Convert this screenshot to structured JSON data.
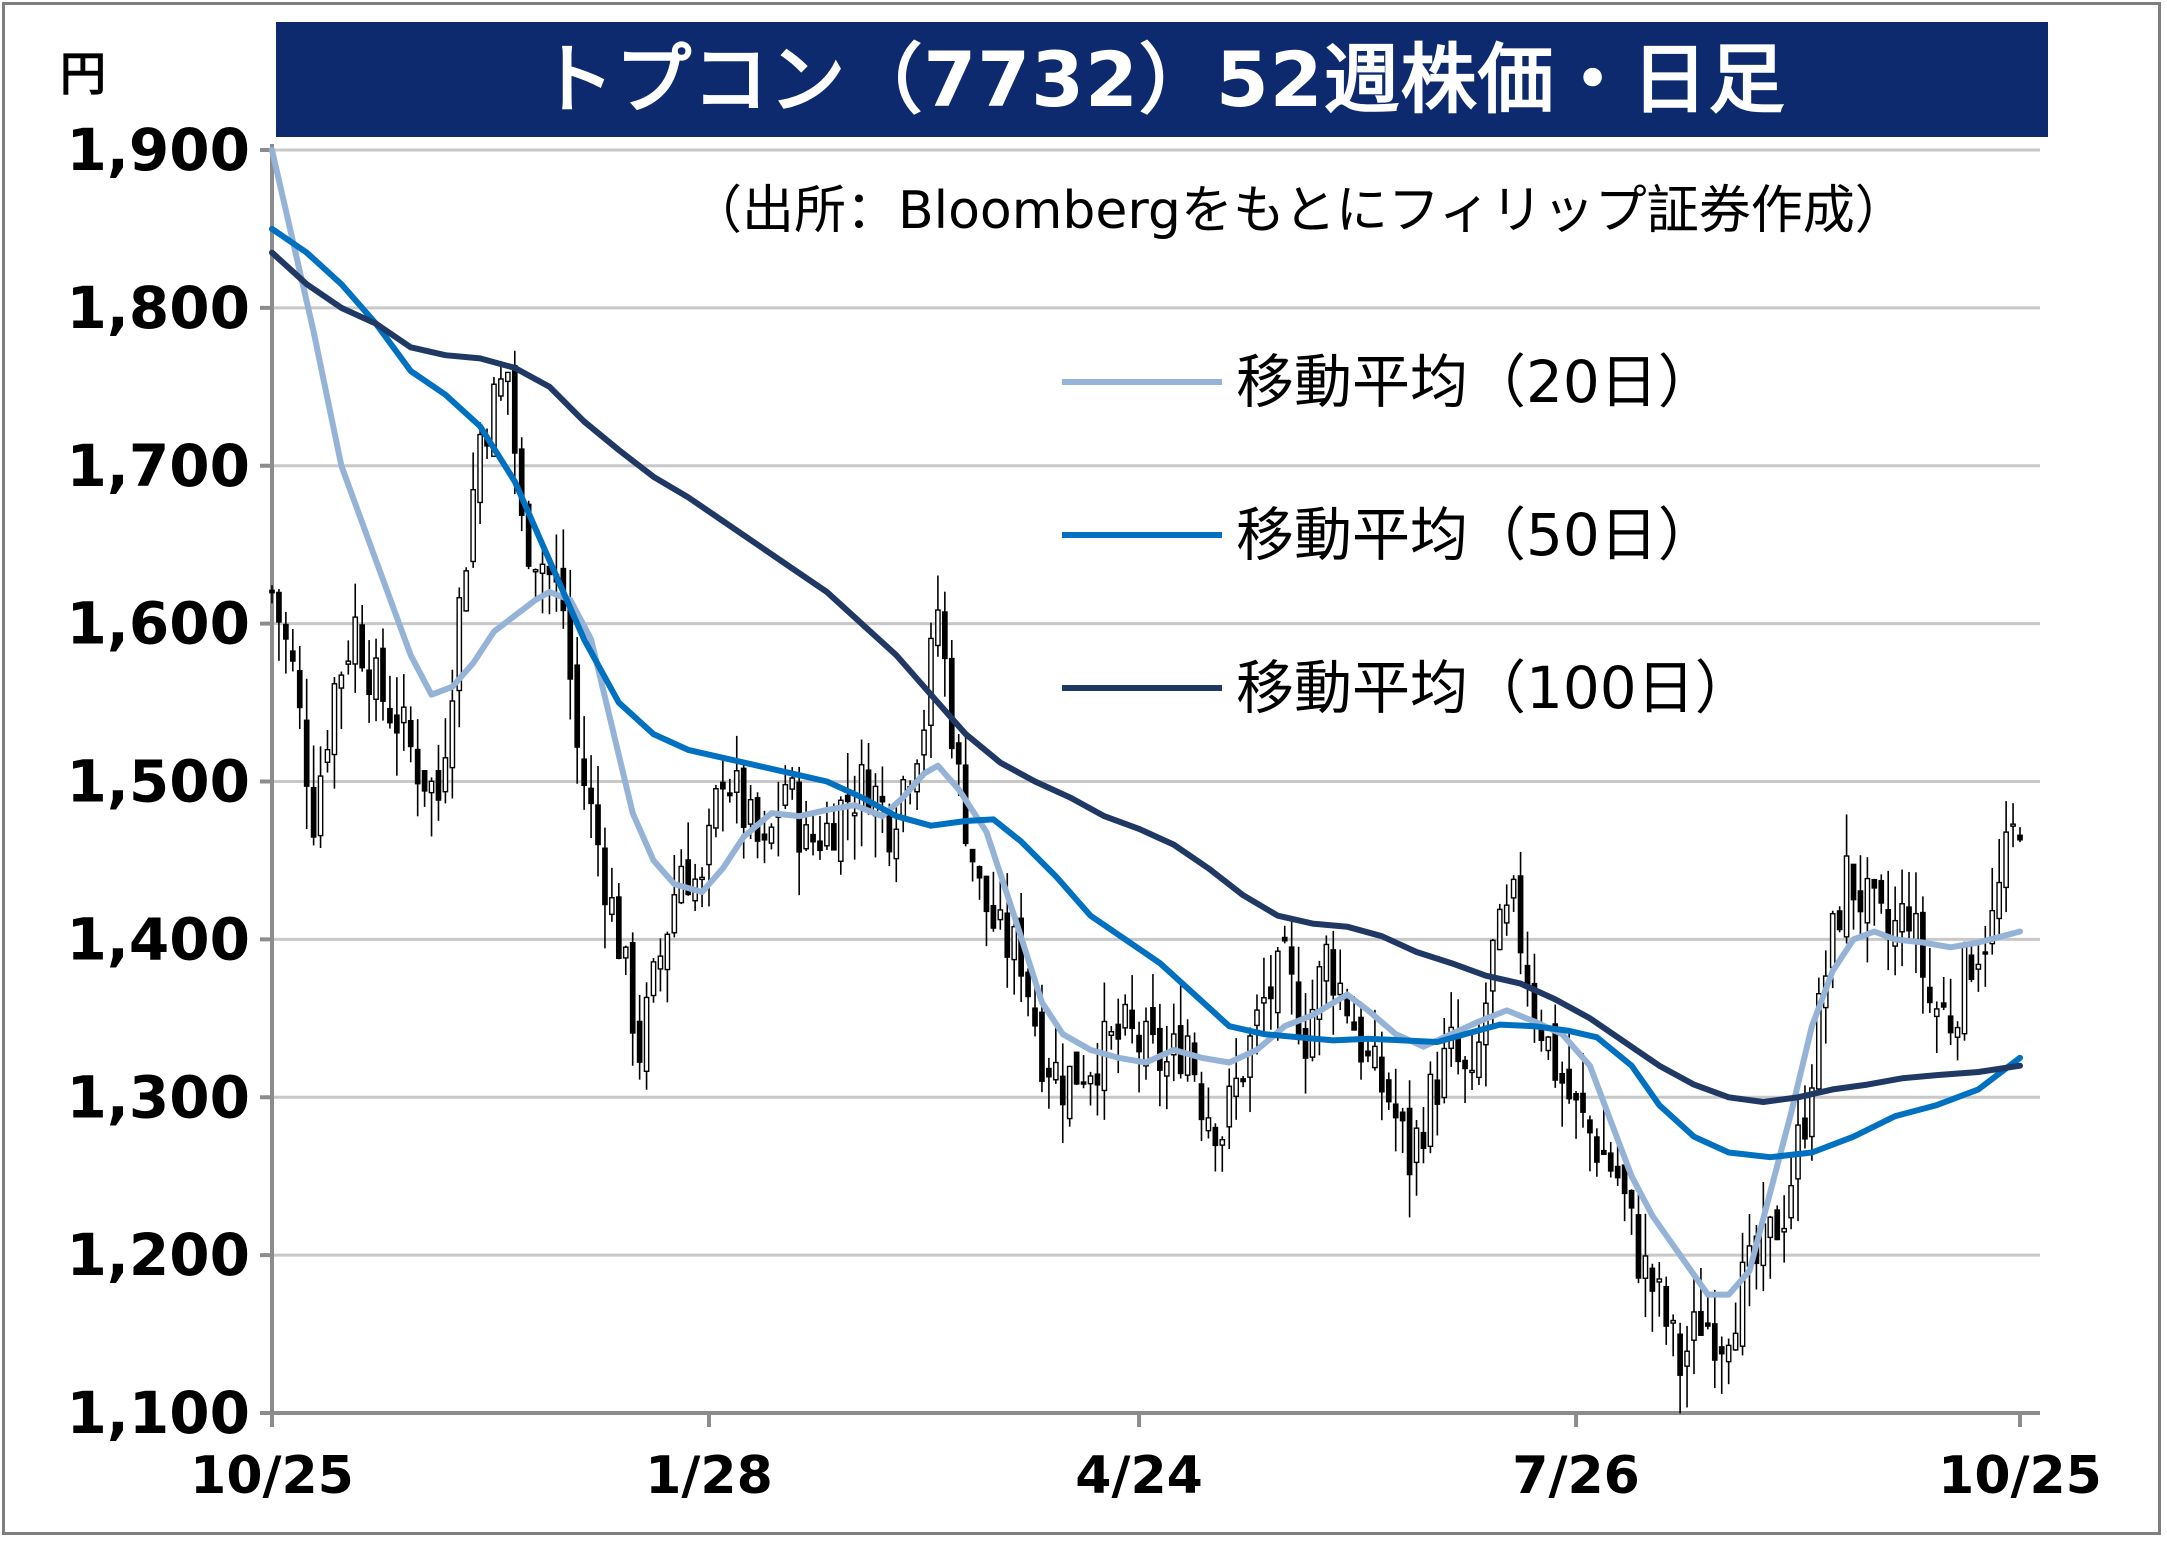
{
  "chart_data": {
    "type": "candlestick",
    "title": "トプコン（7732）52週株価・日足",
    "source_note": "（出所：Bloombergをもとにフィリップ証券作成）",
    "y_unit": "円",
    "ylim": [
      1100,
      1900
    ],
    "y_ticks": [
      1100,
      1200,
      1300,
      1400,
      1500,
      1600,
      1700,
      1800,
      1900
    ],
    "y_tick_labels": [
      "1,100",
      "1,200",
      "1,300",
      "1,400",
      "1,500",
      "1,600",
      "1,700",
      "1,800",
      "1,900"
    ],
    "x_tick_labels": [
      "10/25",
      "1/28",
      "4/24",
      "7/26",
      "10/25"
    ],
    "x_tick_index": [
      0,
      63,
      125,
      188,
      252
    ],
    "n_days": 253,
    "grid": true,
    "legend_position": "top-right",
    "colors": {
      "candle_up": "#ffffff",
      "candle_down": "#000000",
      "ma20": "#95b3d7",
      "ma50": "#0070c0",
      "ma100": "#1f3864",
      "title_bg": "#0d2a6e"
    },
    "series": [
      {
        "name": "移動平均（20日）",
        "key": "ma20",
        "points": [
          [
            0,
            1900
          ],
          [
            6,
            1785
          ],
          [
            10,
            1700
          ],
          [
            15,
            1640
          ],
          [
            20,
            1580
          ],
          [
            23,
            1555
          ],
          [
            26,
            1560
          ],
          [
            29,
            1575
          ],
          [
            32,
            1595
          ],
          [
            35,
            1605
          ],
          [
            38,
            1615
          ],
          [
            40,
            1620
          ],
          [
            43,
            1615
          ],
          [
            46,
            1590
          ],
          [
            49,
            1535
          ],
          [
            52,
            1480
          ],
          [
            55,
            1450
          ],
          [
            58,
            1435
          ],
          [
            62,
            1430
          ],
          [
            65,
            1445
          ],
          [
            68,
            1465
          ],
          [
            72,
            1480
          ],
          [
            76,
            1478
          ],
          [
            80,
            1482
          ],
          [
            84,
            1485
          ],
          [
            88,
            1478
          ],
          [
            91,
            1490
          ],
          [
            94,
            1505
          ],
          [
            96,
            1510
          ],
          [
            99,
            1495
          ],
          [
            103,
            1468
          ],
          [
            107,
            1415
          ],
          [
            111,
            1360
          ],
          [
            114,
            1340
          ],
          [
            118,
            1330
          ],
          [
            122,
            1325
          ],
          [
            126,
            1322
          ],
          [
            130,
            1330
          ],
          [
            134,
            1325
          ],
          [
            138,
            1322
          ],
          [
            142,
            1330
          ],
          [
            146,
            1345
          ],
          [
            150,
            1352
          ],
          [
            155,
            1365
          ],
          [
            158,
            1355
          ],
          [
            162,
            1340
          ],
          [
            166,
            1332
          ],
          [
            170,
            1340
          ],
          [
            174,
            1348
          ],
          [
            178,
            1355
          ],
          [
            182,
            1348
          ],
          [
            186,
            1340
          ],
          [
            190,
            1320
          ],
          [
            193,
            1285
          ],
          [
            196,
            1250
          ],
          [
            199,
            1225
          ],
          [
            203,
            1200
          ],
          [
            207,
            1175
          ],
          [
            210,
            1175
          ],
          [
            213,
            1190
          ],
          [
            216,
            1240
          ],
          [
            219,
            1290
          ],
          [
            222,
            1345
          ],
          [
            225,
            1380
          ],
          [
            228,
            1400
          ],
          [
            231,
            1405
          ],
          [
            234,
            1400
          ],
          [
            238,
            1398
          ],
          [
            242,
            1395
          ],
          [
            246,
            1398
          ],
          [
            252,
            1405
          ]
        ]
      },
      {
        "name": "移動平均（50日）",
        "key": "ma50",
        "points": [
          [
            0,
            1850
          ],
          [
            5,
            1835
          ],
          [
            10,
            1815
          ],
          [
            15,
            1790
          ],
          [
            20,
            1760
          ],
          [
            25,
            1745
          ],
          [
            30,
            1725
          ],
          [
            35,
            1690
          ],
          [
            40,
            1640
          ],
          [
            45,
            1590
          ],
          [
            50,
            1550
          ],
          [
            55,
            1530
          ],
          [
            60,
            1520
          ],
          [
            65,
            1515
          ],
          [
            70,
            1510
          ],
          [
            75,
            1505
          ],
          [
            80,
            1500
          ],
          [
            85,
            1490
          ],
          [
            90,
            1478
          ],
          [
            95,
            1472
          ],
          [
            100,
            1475
          ],
          [
            104,
            1476
          ],
          [
            108,
            1462
          ],
          [
            113,
            1440
          ],
          [
            118,
            1415
          ],
          [
            123,
            1400
          ],
          [
            128,
            1385
          ],
          [
            133,
            1365
          ],
          [
            138,
            1345
          ],
          [
            143,
            1340
          ],
          [
            148,
            1338
          ],
          [
            153,
            1336
          ],
          [
            158,
            1337
          ],
          [
            163,
            1336
          ],
          [
            168,
            1335
          ],
          [
            172,
            1340
          ],
          [
            177,
            1346
          ],
          [
            182,
            1345
          ],
          [
            187,
            1342
          ],
          [
            191,
            1338
          ],
          [
            196,
            1320
          ],
          [
            200,
            1295
          ],
          [
            205,
            1275
          ],
          [
            210,
            1265
          ],
          [
            216,
            1262
          ],
          [
            222,
            1265
          ],
          [
            228,
            1275
          ],
          [
            234,
            1288
          ],
          [
            240,
            1295
          ],
          [
            246,
            1305
          ],
          [
            252,
            1325
          ]
        ]
      },
      {
        "name": "移動平均（100日）",
        "key": "ma100",
        "points": [
          [
            0,
            1835
          ],
          [
            5,
            1815
          ],
          [
            10,
            1800
          ],
          [
            15,
            1790
          ],
          [
            20,
            1775
          ],
          [
            25,
            1770
          ],
          [
            30,
            1768
          ],
          [
            35,
            1762
          ],
          [
            40,
            1750
          ],
          [
            45,
            1728
          ],
          [
            50,
            1710
          ],
          [
            55,
            1693
          ],
          [
            60,
            1680
          ],
          [
            65,
            1665
          ],
          [
            70,
            1650
          ],
          [
            75,
            1635
          ],
          [
            80,
            1620
          ],
          [
            85,
            1600
          ],
          [
            90,
            1580
          ],
          [
            95,
            1555
          ],
          [
            100,
            1530
          ],
          [
            105,
            1512
          ],
          [
            110,
            1500
          ],
          [
            115,
            1490
          ],
          [
            120,
            1478
          ],
          [
            125,
            1470
          ],
          [
            130,
            1460
          ],
          [
            135,
            1445
          ],
          [
            140,
            1428
          ],
          [
            145,
            1415
          ],
          [
            150,
            1410
          ],
          [
            155,
            1408
          ],
          [
            160,
            1402
          ],
          [
            165,
            1392
          ],
          [
            170,
            1385
          ],
          [
            175,
            1377
          ],
          [
            180,
            1372
          ],
          [
            185,
            1362
          ],
          [
            190,
            1350
          ],
          [
            195,
            1335
          ],
          [
            200,
            1320
          ],
          [
            205,
            1308
          ],
          [
            210,
            1300
          ],
          [
            215,
            1297
          ],
          [
            220,
            1300
          ],
          [
            225,
            1305
          ],
          [
            230,
            1308
          ],
          [
            235,
            1312
          ],
          [
            240,
            1314
          ],
          [
            246,
            1316
          ],
          [
            252,
            1320
          ]
        ]
      }
    ],
    "ohlc_anchors": [
      [
        0,
        1620
      ],
      [
        3,
        1570
      ],
      [
        6,
        1480
      ],
      [
        9,
        1560
      ],
      [
        12,
        1600
      ],
      [
        15,
        1560
      ],
      [
        18,
        1540
      ],
      [
        21,
        1510
      ],
      [
        24,
        1490
      ],
      [
        27,
        1610
      ],
      [
        30,
        1720
      ],
      [
        34,
        1760
      ],
      [
        36,
        1660
      ],
      [
        39,
        1640
      ],
      [
        42,
        1610
      ],
      [
        44,
        1520
      ],
      [
        47,
        1460
      ],
      [
        50,
        1400
      ],
      [
        53,
        1330
      ],
      [
        56,
        1390
      ],
      [
        59,
        1450
      ],
      [
        62,
        1430
      ],
      [
        65,
        1510
      ],
      [
        68,
        1480
      ],
      [
        71,
        1450
      ],
      [
        74,
        1500
      ],
      [
        77,
        1460
      ],
      [
        80,
        1470
      ],
      [
        83,
        1490
      ],
      [
        86,
        1500
      ],
      [
        89,
        1475
      ],
      [
        91,
        1500
      ],
      [
        94,
        1540
      ],
      [
        96,
        1610
      ],
      [
        99,
        1500
      ],
      [
        102,
        1430
      ],
      [
        105,
        1400
      ],
      [
        108,
        1390
      ],
      [
        111,
        1330
      ],
      [
        114,
        1310
      ],
      [
        117,
        1320
      ],
      [
        120,
        1330
      ],
      [
        123,
        1340
      ],
      [
        126,
        1330
      ],
      [
        129,
        1320
      ],
      [
        132,
        1340
      ],
      [
        134,
        1300
      ],
      [
        137,
        1280
      ],
      [
        140,
        1320
      ],
      [
        143,
        1360
      ],
      [
        146,
        1380
      ],
      [
        149,
        1340
      ],
      [
        152,
        1390
      ],
      [
        155,
        1360
      ],
      [
        158,
        1320
      ],
      [
        161,
        1300
      ],
      [
        164,
        1260
      ],
      [
        167,
        1300
      ],
      [
        170,
        1330
      ],
      [
        173,
        1300
      ],
      [
        176,
        1390
      ],
      [
        179,
        1420
      ],
      [
        182,
        1360
      ],
      [
        185,
        1320
      ],
      [
        188,
        1290
      ],
      [
        191,
        1270
      ],
      [
        194,
        1250
      ],
      [
        197,
        1200
      ],
      [
        200,
        1170
      ],
      [
        203,
        1130
      ],
      [
        206,
        1160
      ],
      [
        209,
        1150
      ],
      [
        212,
        1180
      ],
      [
        215,
        1200
      ],
      [
        218,
        1230
      ],
      [
        221,
        1290
      ],
      [
        224,
        1380
      ],
      [
        227,
        1440
      ],
      [
        230,
        1420
      ],
      [
        233,
        1400
      ],
      [
        236,
        1420
      ],
      [
        239,
        1360
      ],
      [
        242,
        1350
      ],
      [
        245,
        1390
      ],
      [
        248,
        1410
      ],
      [
        250,
        1450
      ],
      [
        252,
        1480
      ]
    ]
  },
  "legend": [
    {
      "key": "ma20",
      "label": "移動平均（20日）"
    },
    {
      "key": "ma50",
      "label": "移動平均（50日）"
    },
    {
      "key": "ma100",
      "label": "移動平均（100日）"
    }
  ]
}
